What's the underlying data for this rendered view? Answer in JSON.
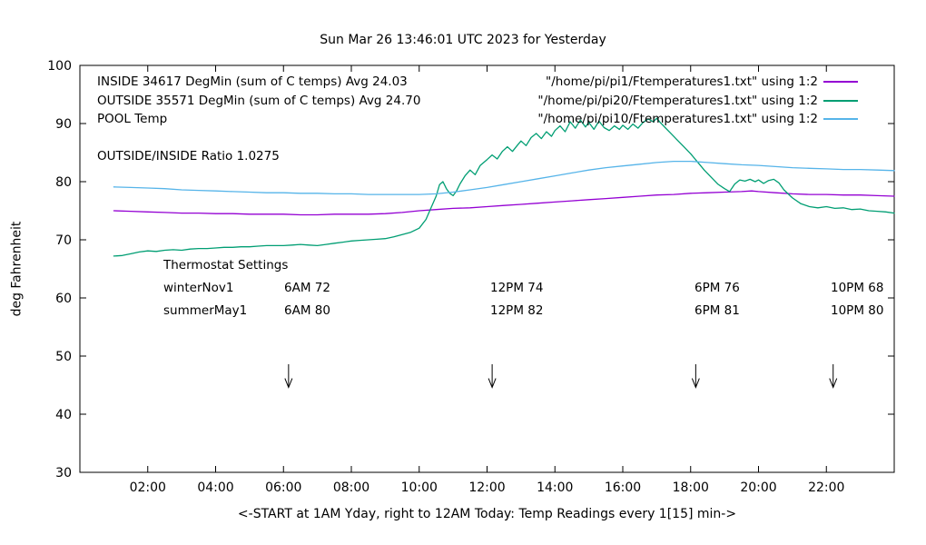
{
  "chart_data": {
    "type": "line",
    "title": "Sun Mar 26 13:46:01 UTC 2023 for Yesterday",
    "xlabel": "<-START at 1AM Yday, right to 12AM Today:  Temp Readings every 1[15] min->",
    "ylabel": "deg Fahrenheit",
    "xlim": [
      0,
      24
    ],
    "ylim": [
      30,
      100
    ],
    "grid": false,
    "legend_position": "top-inside",
    "xticks": [
      {
        "v": 2,
        "label": "02:00"
      },
      {
        "v": 4,
        "label": "04:00"
      },
      {
        "v": 6,
        "label": "06:00"
      },
      {
        "v": 8,
        "label": "08:00"
      },
      {
        "v": 10,
        "label": "10:00"
      },
      {
        "v": 12,
        "label": "12:00"
      },
      {
        "v": 14,
        "label": "14:00"
      },
      {
        "v": 16,
        "label": "16:00"
      },
      {
        "v": 18,
        "label": "18:00"
      },
      {
        "v": 20,
        "label": "20:00"
      },
      {
        "v": 22,
        "label": "22:00"
      }
    ],
    "yticks": [
      30,
      40,
      50,
      60,
      70,
      80,
      90,
      100
    ],
    "legend": [
      {
        "label": "INSIDE 34617 DegMin (sum of C temps) Avg 24.03",
        "file": "\"/home/pi/pi1/Ftemperatures1.txt\" using 1:2"
      },
      {
        "label": "OUTSIDE 35571 DegMin (sum of C temps) Avg 24.70",
        "file": "\"/home/pi/pi20/Ftemperatures1.txt\" using 1:2"
      },
      {
        "label": "POOL Temp",
        "file": "\"/home/pi/pi10/Ftemperatures1.txt\" using 1:2"
      }
    ],
    "annotations": {
      "ratio": "OUTSIDE/INSIDE Ratio 1.0275",
      "thermostat_title": "Thermostat Settings",
      "rows": [
        {
          "name": "winterNov1",
          "settings": [
            "6AM 72",
            "12PM 74",
            "6PM 76",
            "10PM 68"
          ]
        },
        {
          "name": "summerMay1",
          "settings": [
            "6AM 80",
            "12PM 82",
            "6PM 81",
            "10PM 80"
          ]
        }
      ]
    },
    "arrows_x": [
      6.15,
      12.15,
      18.15,
      22.2
    ],
    "series": [
      {
        "name": "INSIDE",
        "color": "#9400d3",
        "points": [
          [
            1,
            75.0
          ],
          [
            1.5,
            74.9
          ],
          [
            2,
            74.8
          ],
          [
            2.5,
            74.7
          ],
          [
            3,
            74.6
          ],
          [
            3.5,
            74.6
          ],
          [
            4,
            74.5
          ],
          [
            4.5,
            74.5
          ],
          [
            5,
            74.4
          ],
          [
            5.5,
            74.4
          ],
          [
            6,
            74.4
          ],
          [
            6.5,
            74.3
          ],
          [
            7,
            74.3
          ],
          [
            7.5,
            74.4
          ],
          [
            8,
            74.4
          ],
          [
            8.5,
            74.4
          ],
          [
            9,
            74.5
          ],
          [
            9.5,
            74.7
          ],
          [
            10,
            75.0
          ],
          [
            10.5,
            75.2
          ],
          [
            11,
            75.4
          ],
          [
            11.5,
            75.5
          ],
          [
            12,
            75.7
          ],
          [
            12.5,
            75.9
          ],
          [
            13,
            76.1
          ],
          [
            13.5,
            76.3
          ],
          [
            14,
            76.5
          ],
          [
            14.5,
            76.7
          ],
          [
            15,
            76.9
          ],
          [
            15.5,
            77.1
          ],
          [
            16,
            77.3
          ],
          [
            16.5,
            77.5
          ],
          [
            17,
            77.7
          ],
          [
            17.5,
            77.8
          ],
          [
            18,
            78.0
          ],
          [
            18.5,
            78.1
          ],
          [
            19,
            78.2
          ],
          [
            19.5,
            78.3
          ],
          [
            19.8,
            78.4
          ],
          [
            20,
            78.3
          ],
          [
            20.5,
            78.1
          ],
          [
            21,
            77.9
          ],
          [
            21.5,
            77.8
          ],
          [
            22,
            77.8
          ],
          [
            22.5,
            77.7
          ],
          [
            23,
            77.7
          ],
          [
            23.5,
            77.6
          ],
          [
            24,
            77.5
          ]
        ]
      },
      {
        "name": "OUTSIDE",
        "color": "#009e73",
        "points": [
          [
            1,
            67.2
          ],
          [
            1.25,
            67.3
          ],
          [
            1.5,
            67.6
          ],
          [
            1.75,
            67.9
          ],
          [
            2,
            68.1
          ],
          [
            2.25,
            68.0
          ],
          [
            2.5,
            68.2
          ],
          [
            2.75,
            68.3
          ],
          [
            3,
            68.2
          ],
          [
            3.25,
            68.4
          ],
          [
            3.5,
            68.5
          ],
          [
            3.75,
            68.5
          ],
          [
            4,
            68.6
          ],
          [
            4.25,
            68.7
          ],
          [
            4.5,
            68.7
          ],
          [
            4.75,
            68.8
          ],
          [
            5,
            68.8
          ],
          [
            5.25,
            68.9
          ],
          [
            5.5,
            69.0
          ],
          [
            5.75,
            69.0
          ],
          [
            6,
            69.0
          ],
          [
            6.25,
            69.1
          ],
          [
            6.5,
            69.2
          ],
          [
            6.75,
            69.1
          ],
          [
            7,
            69.0
          ],
          [
            7.25,
            69.2
          ],
          [
            7.5,
            69.4
          ],
          [
            7.75,
            69.6
          ],
          [
            8,
            69.8
          ],
          [
            8.25,
            69.9
          ],
          [
            8.5,
            70.0
          ],
          [
            8.75,
            70.1
          ],
          [
            9,
            70.2
          ],
          [
            9.25,
            70.5
          ],
          [
            9.5,
            70.9
          ],
          [
            9.75,
            71.3
          ],
          [
            10,
            72.0
          ],
          [
            10.2,
            73.5
          ],
          [
            10.35,
            75.5
          ],
          [
            10.5,
            77.5
          ],
          [
            10.6,
            79.5
          ],
          [
            10.7,
            80.0
          ],
          [
            10.8,
            78.8
          ],
          [
            10.9,
            78.0
          ],
          [
            11,
            77.6
          ],
          [
            11.1,
            78.4
          ],
          [
            11.2,
            79.6
          ],
          [
            11.35,
            81.0
          ],
          [
            11.5,
            82.0
          ],
          [
            11.65,
            81.2
          ],
          [
            11.8,
            82.8
          ],
          [
            12,
            83.8
          ],
          [
            12.15,
            84.6
          ],
          [
            12.3,
            83.9
          ],
          [
            12.45,
            85.2
          ],
          [
            12.6,
            86.0
          ],
          [
            12.75,
            85.2
          ],
          [
            12.9,
            86.3
          ],
          [
            13,
            87.0
          ],
          [
            13.15,
            86.2
          ],
          [
            13.3,
            87.6
          ],
          [
            13.45,
            88.3
          ],
          [
            13.6,
            87.4
          ],
          [
            13.75,
            88.6
          ],
          [
            13.9,
            87.8
          ],
          [
            14,
            88.8
          ],
          [
            14.15,
            89.6
          ],
          [
            14.3,
            88.6
          ],
          [
            14.45,
            90.3
          ],
          [
            14.6,
            89.2
          ],
          [
            14.75,
            90.6
          ],
          [
            14.9,
            89.4
          ],
          [
            15,
            90.2
          ],
          [
            15.15,
            89.0
          ],
          [
            15.3,
            90.4
          ],
          [
            15.45,
            89.3
          ],
          [
            15.6,
            88.8
          ],
          [
            15.75,
            89.6
          ],
          [
            15.9,
            89.0
          ],
          [
            16,
            89.7
          ],
          [
            16.15,
            89.0
          ],
          [
            16.3,
            89.9
          ],
          [
            16.45,
            89.2
          ],
          [
            16.6,
            90.2
          ],
          [
            16.75,
            90.8
          ],
          [
            16.9,
            90.3
          ],
          [
            17,
            90.9
          ],
          [
            17.1,
            90.2
          ],
          [
            17.25,
            89.3
          ],
          [
            17.4,
            88.4
          ],
          [
            17.6,
            87.2
          ],
          [
            17.8,
            86.0
          ],
          [
            18,
            84.8
          ],
          [
            18.2,
            83.4
          ],
          [
            18.4,
            82.0
          ],
          [
            18.6,
            80.8
          ],
          [
            18.8,
            79.6
          ],
          [
            19,
            78.8
          ],
          [
            19.15,
            78.3
          ],
          [
            19.3,
            79.6
          ],
          [
            19.45,
            80.3
          ],
          [
            19.6,
            80.1
          ],
          [
            19.75,
            80.4
          ],
          [
            19.9,
            80.0
          ],
          [
            20,
            80.3
          ],
          [
            20.15,
            79.7
          ],
          [
            20.3,
            80.2
          ],
          [
            20.45,
            80.4
          ],
          [
            20.6,
            79.8
          ],
          [
            20.75,
            78.6
          ],
          [
            21,
            77.2
          ],
          [
            21.25,
            76.2
          ],
          [
            21.5,
            75.7
          ],
          [
            21.75,
            75.5
          ],
          [
            22,
            75.7
          ],
          [
            22.25,
            75.4
          ],
          [
            22.5,
            75.5
          ],
          [
            22.75,
            75.2
          ],
          [
            23,
            75.3
          ],
          [
            23.25,
            75.0
          ],
          [
            23.5,
            74.9
          ],
          [
            23.75,
            74.8
          ],
          [
            24,
            74.6
          ]
        ]
      },
      {
        "name": "POOL",
        "color": "#56b4e9",
        "points": [
          [
            1,
            79.1
          ],
          [
            1.5,
            79.0
          ],
          [
            2,
            78.9
          ],
          [
            2.5,
            78.8
          ],
          [
            3,
            78.6
          ],
          [
            3.5,
            78.5
          ],
          [
            4,
            78.4
          ],
          [
            4.5,
            78.3
          ],
          [
            5,
            78.2
          ],
          [
            5.5,
            78.1
          ],
          [
            6,
            78.1
          ],
          [
            6.5,
            78.0
          ],
          [
            7,
            78.0
          ],
          [
            7.5,
            77.9
          ],
          [
            8,
            77.9
          ],
          [
            8.5,
            77.8
          ],
          [
            9,
            77.8
          ],
          [
            9.5,
            77.8
          ],
          [
            10,
            77.8
          ],
          [
            10.5,
            77.9
          ],
          [
            11,
            78.2
          ],
          [
            11.5,
            78.6
          ],
          [
            12,
            79.0
          ],
          [
            12.5,
            79.5
          ],
          [
            13,
            80.0
          ],
          [
            13.5,
            80.5
          ],
          [
            14,
            81.0
          ],
          [
            14.5,
            81.5
          ],
          [
            15,
            82.0
          ],
          [
            15.5,
            82.4
          ],
          [
            16,
            82.7
          ],
          [
            16.5,
            83.0
          ],
          [
            17,
            83.3
          ],
          [
            17.5,
            83.5
          ],
          [
            18,
            83.5
          ],
          [
            18.5,
            83.3
          ],
          [
            19,
            83.1
          ],
          [
            19.5,
            82.9
          ],
          [
            20,
            82.8
          ],
          [
            20.5,
            82.6
          ],
          [
            21,
            82.4
          ],
          [
            21.5,
            82.3
          ],
          [
            22,
            82.2
          ],
          [
            22.5,
            82.1
          ],
          [
            23,
            82.1
          ],
          [
            23.5,
            82.0
          ],
          [
            24,
            81.9
          ]
        ]
      }
    ]
  }
}
